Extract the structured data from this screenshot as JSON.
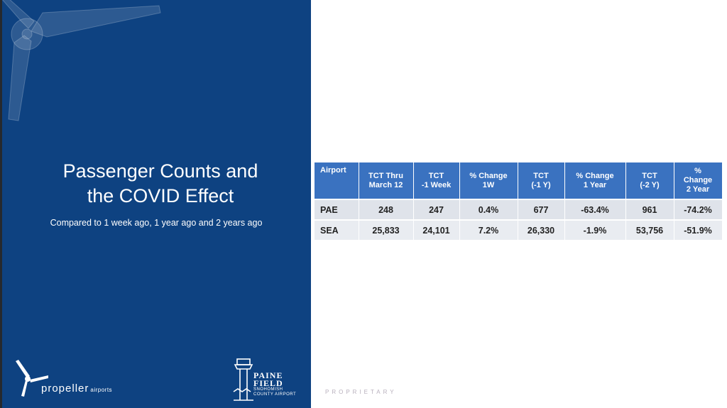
{
  "slide": {
    "title_line1": "Passenger Counts and",
    "title_line2": "the COVID Effect",
    "subtitle": "Compared to 1 week ago, 1 year ago and 2 years ago",
    "footer_label": "PROPRIETARY"
  },
  "logos": {
    "propeller_name": "propeller",
    "propeller_suffix": "airports",
    "paine_line1": "PAINE",
    "paine_line2": "FIELD",
    "paine_line3": "SNOHOMISH",
    "paine_line4": "COUNTY AIRPORT"
  },
  "table": {
    "headers": [
      {
        "l1": "Airport",
        "l2": "",
        "l3": ""
      },
      {
        "l1": "TCT Thru",
        "l2": "March 12",
        "l3": ""
      },
      {
        "l1": "TCT",
        "l2": "-1 Week",
        "l3": ""
      },
      {
        "l1": "% Change",
        "l2": "1W",
        "l3": ""
      },
      {
        "l1": "TCT",
        "l2": "(-1 Y)",
        "l3": ""
      },
      {
        "l1": "% Change",
        "l2": "1 Year",
        "l3": ""
      },
      {
        "l1": "TCT",
        "l2": "(-2 Y)",
        "l3": ""
      },
      {
        "l1": "%",
        "l2": "Change",
        "l3": "2 Year"
      }
    ],
    "rows": [
      {
        "airport": "PAE",
        "tct_thru": "248",
        "tct_1w": "247",
        "chg_1w": "0.4%",
        "tct_1y": "677",
        "chg_1y": "-63.4%",
        "tct_2y": "961",
        "chg_2y": "-74.2%"
      },
      {
        "airport": "SEA",
        "tct_thru": "25,833",
        "tct_1w": "24,101",
        "chg_1w": "7.2%",
        "tct_1y": "26,330",
        "chg_1y": "-1.9%",
        "tct_2y": "53,756",
        "chg_2y": "-51.9%"
      }
    ]
  },
  "colors": {
    "panel_blue": "#0e4281",
    "header_blue": "#3a72c0",
    "positive_green": "#548235",
    "negative_red": "#c00000"
  }
}
